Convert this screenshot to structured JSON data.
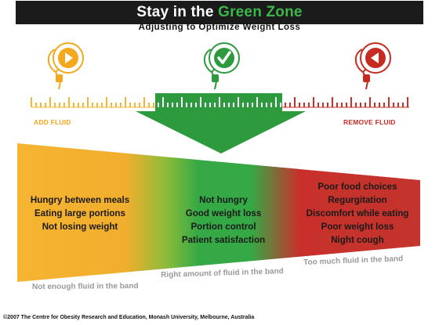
{
  "title": {
    "prefix": "Stay in the ",
    "highlight": "Green Zone"
  },
  "subtitle": "Adjusting to Optimize Weight Loss",
  "icons": {
    "left": {
      "name": "play-icon",
      "color": "#f3a81d"
    },
    "center": {
      "name": "checkmark-icon",
      "color": "#2e9a3e"
    },
    "right": {
      "name": "reverse-icon",
      "color": "#c52b22"
    }
  },
  "labels": {
    "add_fluid": "ADD FLUID",
    "remove_fluid": "REMOVE FLUID"
  },
  "zones": {
    "left": [
      "Hungry between meals",
      "Eating large portions",
      "Not losing weight"
    ],
    "middle": [
      "Not hungry",
      "Good weight loss",
      "Portion control",
      "Patient satisfaction"
    ],
    "right": [
      "Poor food choices",
      "Regurgitation",
      "Discomfort while eating",
      "Poor weight loss",
      "Night cough"
    ]
  },
  "captions": {
    "left": "Not enough fluid in the band",
    "middle": "Right amount of fluid in the band",
    "right": "Too much fluid in the band"
  },
  "colors": {
    "yellow": "#f5b431",
    "green": "#34a945",
    "red": "#c8312b",
    "title_bg": "#1b1b1b"
  },
  "copyright": "©2007 The Centre for Obesity Research and Education, Monash University, Melbourne, Australia"
}
